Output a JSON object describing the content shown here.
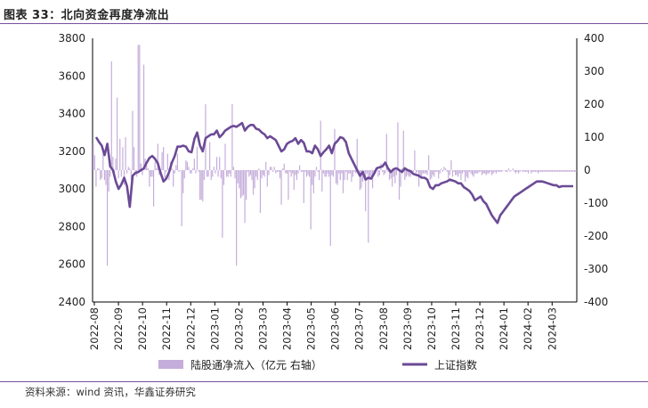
{
  "header": {
    "title": "图表 33：北向资金再度净流出"
  },
  "footer": {
    "source": "资料来源：wind 资讯，华鑫证券研究"
  },
  "colors": {
    "bar": "#c5addb",
    "line": "#6b4a96",
    "axis": "#000000",
    "text": "#222222"
  },
  "chart_data": {
    "type": "bar+line",
    "title": "图表 33：北向资金再度净流出",
    "x_ticks": [
      "2022-08",
      "2022-09",
      "2022-10",
      "2022-11",
      "2022-12",
      "2023-01",
      "2023-02",
      "2023-03",
      "2023-04",
      "2023-05",
      "2023-06",
      "2023-07",
      "2023-08",
      "2023-09",
      "2023-10",
      "2023-11",
      "2023-12",
      "2024-01",
      "2024-02",
      "2024-03"
    ],
    "left_axis": {
      "ticks": [
        2400,
        2600,
        2800,
        3000,
        3200,
        3400,
        3600,
        3800
      ],
      "ylim": [
        2400,
        3800
      ]
    },
    "right_axis": {
      "ticks": [
        400,
        300,
        200,
        100,
        0,
        -100,
        -200,
        -300,
        -400
      ],
      "ylim": [
        -400,
        400
      ]
    },
    "series": [
      {
        "name": "陆股通净流入（亿元 右轴）",
        "type": "bar",
        "axis": "right",
        "values": [
          80,
          45,
          -50,
          5,
          5,
          -30,
          -25,
          60,
          -30,
          -45,
          -290,
          -65,
          -20,
          330,
          40,
          -20,
          35,
          220,
          -25,
          95,
          -20,
          70,
          -45,
          100,
          -10,
          10,
          5,
          -30,
          180,
          70,
          -15,
          -20,
          380,
          380,
          20,
          -15,
          320,
          35,
          15,
          5,
          -50,
          -20,
          -20,
          -110,
          25,
          5,
          80,
          -15,
          -5,
          55,
          70,
          -25,
          -5,
          50,
          -30,
          25,
          5,
          -50,
          -10,
          15,
          50,
          -5,
          0,
          -170,
          -70,
          -25,
          30,
          25,
          10,
          -10,
          -10,
          5,
          35,
          -10,
          70,
          -5,
          -90,
          -90,
          -95,
          -30,
          200,
          -20,
          -20,
          85,
          -30,
          -20,
          10,
          -10,
          40,
          -20,
          40,
          -25,
          -205,
          -45,
          80,
          -20,
          -20,
          -10,
          -20,
          200,
          10,
          -25,
          -290,
          -40,
          -55,
          -85,
          -80,
          -75,
          -160,
          -90,
          -5,
          -20,
          -15,
          -30,
          -75,
          -55,
          -20,
          -30,
          5,
          -130,
          -25,
          -15,
          -20,
          25,
          -50,
          -15,
          10,
          10,
          -5,
          10,
          -10,
          -5,
          -5,
          -25,
          -105,
          5,
          20,
          -10,
          -10,
          -90,
          -5,
          -20,
          -10,
          -60,
          -15,
          -30,
          -10,
          15,
          -5,
          -5,
          -100,
          -5,
          -20,
          -15,
          -20,
          -180,
          -45,
          -70,
          -20,
          10,
          -5,
          -30,
          150,
          -65,
          -10,
          -20,
          -20,
          -10,
          -20,
          -230,
          -15,
          -20,
          125,
          -40,
          -45,
          -10,
          -30,
          -10,
          -70,
          -30,
          -5,
          -30,
          -10,
          -10,
          -35,
          -20,
          -5,
          -10,
          95,
          -10,
          -60,
          -55,
          -35,
          -25,
          -125,
          -10,
          -220,
          -30,
          -20,
          -55,
          -15,
          -10,
          5,
          -20,
          -15,
          20,
          -5,
          -15,
          -10,
          110,
          -5,
          -30,
          -25,
          -50,
          -20,
          -40,
          -15,
          145,
          -90,
          -50,
          5,
          120,
          -30,
          -20,
          -15,
          -20,
          -20,
          -10,
          -5,
          60,
          -10,
          -5,
          -50,
          -15,
          -20,
          -10,
          -10,
          -10,
          -15,
          45,
          -30,
          -25,
          -15,
          -20,
          -5,
          -5,
          -25,
          -10,
          5,
          -5,
          10,
          5,
          -5,
          -25,
          -15,
          30,
          -20,
          -5,
          -15,
          -15,
          -20,
          -10,
          -30,
          -10,
          -5,
          -35,
          -20,
          -25,
          -5,
          -10,
          -15,
          -20,
          -10,
          -10,
          -10,
          -5,
          -5,
          -15,
          -10,
          -10,
          -15,
          -10,
          -10,
          -5,
          -15,
          -10,
          -5,
          -10,
          -5,
          -5,
          -5,
          -5,
          0,
          0,
          -5,
          -5,
          5,
          -5,
          0,
          5,
          -5,
          -10,
          -5,
          -10,
          -5,
          0,
          -5,
          -5,
          -5,
          -5,
          -10,
          0,
          -10,
          -5,
          -5,
          -5,
          -5,
          -10,
          -5,
          -5,
          -5,
          -5,
          -5,
          -5,
          -5,
          -5,
          -5,
          -5,
          -5,
          -5,
          -5,
          -5,
          -5,
          -5,
          -5,
          -5,
          -5,
          -5,
          -5,
          -5,
          -5,
          -5,
          -5,
          -5,
          -5
        ]
      },
      {
        "name": "上证指数",
        "type": "line",
        "axis": "left",
        "values": [
          3275,
          3250,
          3230,
          3180,
          3240,
          3120,
          3100,
          3040,
          3000,
          3025,
          3060,
          3015,
          2905,
          3070,
          3085,
          3090,
          3100,
          3110,
          3140,
          3165,
          3175,
          3160,
          3135,
          3085,
          3040,
          3055,
          3090,
          3140,
          3175,
          3225,
          3225,
          3230,
          3225,
          3200,
          3195,
          3265,
          3300,
          3230,
          3200,
          3270,
          3280,
          3290,
          3290,
          3310,
          3275,
          3290,
          3310,
          3320,
          3330,
          3335,
          3330,
          3340,
          3350,
          3310,
          3330,
          3340,
          3340,
          3320,
          3315,
          3300,
          3290,
          3270,
          3280,
          3270,
          3260,
          3230,
          3200,
          3210,
          3240,
          3250,
          3255,
          3270,
          3240,
          3260,
          3245,
          3200,
          3200,
          3190,
          3230,
          3210,
          3175,
          3195,
          3210,
          3230,
          3190,
          3240,
          3255,
          3275,
          3270,
          3250,
          3190,
          3160,
          3130,
          3100,
          3070,
          3090,
          3050,
          3060,
          3055,
          3080,
          3110,
          3115,
          3120,
          3140,
          3110,
          3090,
          3105,
          3110,
          3100,
          3090,
          3110,
          3100,
          3095,
          3080,
          3075,
          3070,
          3060,
          3060,
          3050,
          3010,
          3000,
          3020,
          3020,
          3030,
          3035,
          3040,
          3050,
          3045,
          3040,
          3030,
          3030,
          3010,
          3000,
          2990,
          2970,
          2940,
          2950,
          2960,
          2935,
          2920,
          2890,
          2860,
          2840,
          2820,
          2860,
          2880,
          2900,
          2920,
          2940,
          2960,
          2970,
          2980,
          2990,
          3000,
          3010,
          3020,
          3030,
          3040,
          3040,
          3040,
          3035,
          3030,
          3025,
          3020,
          3020,
          3010,
          3015,
          3015,
          3015,
          3015,
          3015
        ]
      }
    ],
    "legend": [
      "陆股通净流入（亿元 右轴）",
      "上证指数"
    ]
  }
}
